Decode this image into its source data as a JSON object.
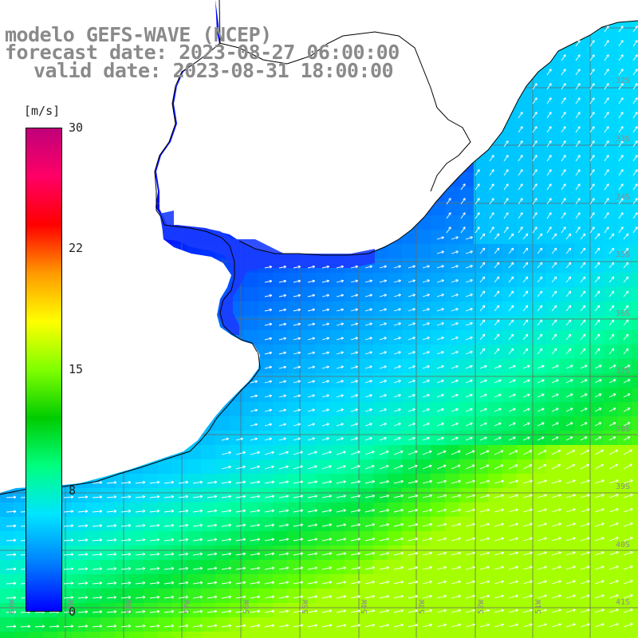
{
  "title": {
    "line1": "modelo GEFS-WAVE (NCEP)",
    "line2": "forecast date: 2023-08-27 06:00:00",
    "line3": "valid date: 2023-08-31 18:00:00"
  },
  "colorbar": {
    "unit": "[m/s]",
    "ticks": [
      "30",
      "22",
      "15",
      "8",
      "0"
    ],
    "colors": [
      "#0000ff",
      "#0080ff",
      "#00e5ff",
      "#00ff80",
      "#00cc00",
      "#80ff00",
      "#ffff00",
      "#ff9900",
      "#ff0000",
      "#ff0066",
      "#c0007a"
    ]
  },
  "lat_labels": [
    "32S",
    "33S",
    "34S",
    "35S",
    "36S",
    "37S",
    "38S",
    "39S",
    "40S",
    "41S"
  ],
  "lon_labels": [
    "60W",
    "59W",
    "58W",
    "57W",
    "56W",
    "55W",
    "54W",
    "53W",
    "52W",
    "51W"
  ]
}
